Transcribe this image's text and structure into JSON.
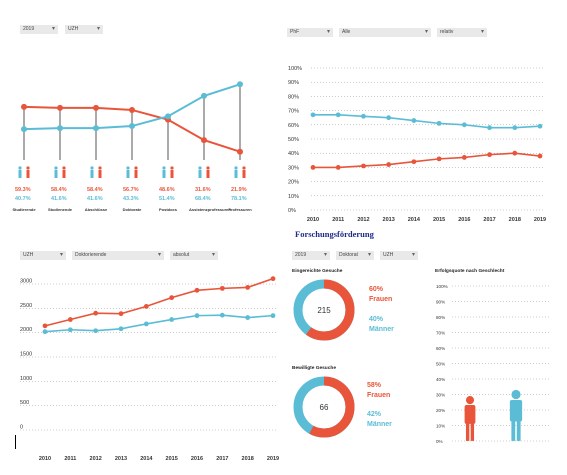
{
  "colors": {
    "female": "#e8553a",
    "male": "#5bbcd6",
    "dropdown": "#e9e9e9",
    "heading": "#1d2a8a"
  },
  "panel1": {
    "dropdowns": [
      "2019",
      "UZH"
    ],
    "stages": [
      {
        "label": "Studierende",
        "female": "59.3%",
        "male": "40.7%"
      },
      {
        "label": "Studienende",
        "female": "58.4%",
        "male": "41.6%"
      },
      {
        "label": "Abschlüsse",
        "female": "58.4%",
        "male": "41.6%"
      },
      {
        "label": "Doktorate",
        "female": "56.7%",
        "male": "43.3%"
      },
      {
        "label": "Postdocs",
        "female": "48.6%",
        "male": "51.4%"
      },
      {
        "label": "Assistenzprofessuren",
        "female": "31.6%",
        "male": "68.4%"
      },
      {
        "label": "Professuren",
        "female": "21.9%",
        "male": "78.1%"
      }
    ],
    "chart_data": {
      "type": "line",
      "categories": [
        "Studierende",
        "Studienende",
        "Abschlüsse",
        "Doktorate",
        "Postdocs",
        "Assistenzprofessuren",
        "Professuren"
      ],
      "series": [
        {
          "values": [
            59.3,
            58.4,
            58.4,
            56.7,
            48.6,
            31.6,
            21.9
          ]
        },
        {
          "values": [
            40.7,
            41.6,
            41.6,
            43.3,
            51.4,
            68.4,
            78.1
          ]
        }
      ],
      "ylim": [
        0,
        100
      ]
    }
  },
  "panel2": {
    "dropdowns": [
      "PhF",
      "Alle",
      "relativ"
    ],
    "chart_data": {
      "type": "line",
      "x": [
        "2010",
        "2011",
        "2012",
        "2013",
        "2014",
        "2015",
        "2016",
        "2017",
        "2018",
        "2019"
      ],
      "yticks": [
        "0%",
        "10%",
        "20%",
        "30%",
        "40%",
        "50%",
        "60%",
        "70%",
        "80%",
        "90%",
        "100%"
      ],
      "ylim": [
        0,
        100
      ],
      "grid": true,
      "series": [
        {
          "values": [
            67,
            67,
            66,
            65,
            63,
            61,
            60,
            58,
            58,
            59
          ]
        },
        {
          "values": [
            30,
            30,
            31,
            32,
            34,
            36,
            37,
            39,
            40,
            38
          ]
        }
      ]
    }
  },
  "panel3": {
    "dropdowns": [
      "UZH",
      "Doktorierende",
      "absolut"
    ],
    "chart_data": {
      "type": "line",
      "x": [
        "2010",
        "2011",
        "2012",
        "2013",
        "2014",
        "2015",
        "2016",
        "2017",
        "2018",
        "2019"
      ],
      "yticks": [
        "0",
        "500",
        "1000",
        "1500",
        "2000",
        "2500",
        "3000"
      ],
      "ylim": [
        0,
        3000
      ],
      "grid": true,
      "series": [
        {
          "values": [
            2140,
            2270,
            2400,
            2390,
            2540,
            2720,
            2870,
            2910,
            2930,
            3110
          ]
        },
        {
          "values": [
            2020,
            2060,
            2040,
            2080,
            2180,
            2270,
            2350,
            2360,
            2310,
            2350
          ]
        }
      ]
    }
  },
  "panel4": {
    "title": "Forschungsförderung",
    "dropdowns": [
      "2019",
      "Doktorat",
      "UZH"
    ],
    "eingereicht": {
      "heading": "Eingereichte Gesuche",
      "total": "215",
      "female_pct": "60%",
      "female_label": "Frauen",
      "male_pct": "40%",
      "male_label": "Männer",
      "chart_data": {
        "type": "pie",
        "categories": [
          "Frauen",
          "Männer"
        ],
        "values": [
          60,
          40
        ]
      }
    },
    "bewilligt": {
      "heading": "Bewilligte Gesuche",
      "total": "66",
      "female_pct": "58%",
      "female_label": "Frauen",
      "male_pct": "42%",
      "male_label": "Männer",
      "chart_data": {
        "type": "pie",
        "categories": [
          "Frauen",
          "Männer"
        ],
        "values": [
          58,
          42
        ]
      }
    },
    "erfolg": {
      "heading": "Erfolgsquote nach Geschlecht",
      "yticks": [
        "0%",
        "10%",
        "20%",
        "30%",
        "40%",
        "50%",
        "60%",
        "70%",
        "80%",
        "90%",
        "100%"
      ],
      "chart_data": {
        "type": "bar",
        "categories": [
          "Frauen",
          "Männer"
        ],
        "values": [
          29,
          33
        ],
        "ylim": [
          0,
          100
        ]
      }
    }
  }
}
